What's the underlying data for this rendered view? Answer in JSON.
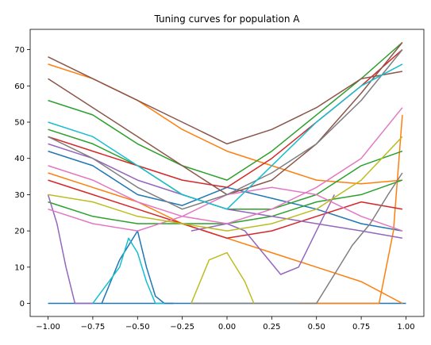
{
  "chart_data": {
    "type": "line",
    "title": "Tuning curves for population A",
    "xlabel": "",
    "ylabel": "",
    "xlim": [
      -1.1,
      1.1
    ],
    "ylim": [
      -3.6,
      75.6
    ],
    "grid": false,
    "legend": "none",
    "x_ticks": [
      -1.0,
      -0.75,
      -0.5,
      -0.25,
      0.0,
      0.25,
      0.5,
      0.75,
      1.0
    ],
    "x_tick_labels": [
      "−1.00",
      "−0.75",
      "−0.50",
      "−0.25",
      "0.00",
      "0.25",
      "0.50",
      "0.75",
      "1.00"
    ],
    "y_ticks": [
      0,
      10,
      20,
      30,
      40,
      50,
      60,
      70
    ],
    "y_tick_labels": [
      "0",
      "10",
      "20",
      "30",
      "40",
      "50",
      "60",
      "70"
    ],
    "series": [
      {
        "color": "#1f77b4",
        "x": [
          -1.0,
          -0.8,
          -0.7,
          -0.6,
          -0.5,
          -0.45,
          -0.4,
          -0.35,
          -0.3,
          0.0,
          0.5,
          1.0
        ],
        "y": [
          0,
          0,
          0,
          0,
          0,
          0,
          0,
          0,
          0,
          0,
          0,
          0
        ]
      },
      {
        "color": "#1f77b4",
        "x": [
          -1.0,
          -0.75,
          -0.5,
          -0.25,
          0.0,
          0.25,
          0.5,
          0.75,
          0.98
        ],
        "y": [
          42,
          38,
          30,
          27,
          32,
          29,
          26,
          22,
          20
        ]
      },
      {
        "color": "#1f77b4",
        "x": [
          -0.7,
          -0.6,
          -0.5,
          -0.45,
          -0.4,
          -0.35,
          -0.3
        ],
        "y": [
          0,
          12,
          20,
          10,
          2,
          0,
          0
        ]
      },
      {
        "color": "#ff7f0e",
        "x": [
          -1.0,
          -0.75,
          -0.5,
          -0.25,
          0.0,
          0.25,
          0.5,
          0.75,
          0.98
        ],
        "y": [
          66,
          62,
          56,
          48,
          42,
          38,
          34,
          33,
          34
        ]
      },
      {
        "color": "#ff7f0e",
        "x": [
          -1.0,
          -0.75,
          -0.5,
          -0.25,
          0.0,
          0.25,
          0.5,
          0.75,
          0.98
        ],
        "y": [
          36,
          32,
          28,
          22,
          18,
          14,
          10,
          6,
          0
        ]
      },
      {
        "color": "#ff7f0e",
        "x": [
          0.4,
          0.5,
          0.6,
          0.75,
          0.85,
          0.93,
          0.98
        ],
        "y": [
          0,
          0,
          0,
          0,
          0,
          20,
          52
        ]
      },
      {
        "color": "#2ca02c",
        "x": [
          -1.0,
          -0.75,
          -0.5,
          -0.25,
          0.0,
          0.25,
          0.5,
          0.75,
          0.98
        ],
        "y": [
          56,
          52,
          44,
          38,
          34,
          42,
          52,
          62,
          72
        ]
      },
      {
        "color": "#2ca02c",
        "x": [
          -1.0,
          -0.75,
          -0.5,
          -0.25,
          0.0,
          0.25,
          0.5,
          0.75,
          0.98
        ],
        "y": [
          48,
          44,
          38,
          30,
          26,
          26,
          30,
          38,
          42
        ]
      },
      {
        "color": "#2ca02c",
        "x": [
          -1.0,
          -0.75,
          -0.5,
          -0.25,
          0.0,
          0.25,
          0.5,
          0.75,
          0.98
        ],
        "y": [
          28,
          24,
          22,
          22,
          22,
          24,
          28,
          30,
          34
        ]
      },
      {
        "color": "#d62728",
        "x": [
          -1.0,
          -0.75,
          -0.5,
          -0.25,
          0.0,
          0.25,
          0.5,
          0.75,
          0.98
        ],
        "y": [
          46,
          42,
          38,
          34,
          32,
          40,
          50,
          60,
          70
        ]
      },
      {
        "color": "#d62728",
        "x": [
          -1.0,
          -0.75,
          -0.5,
          -0.25,
          0.0,
          0.25,
          0.5,
          0.75,
          0.98
        ],
        "y": [
          34,
          30,
          26,
          22,
          18,
          20,
          24,
          28,
          26
        ]
      },
      {
        "color": "#9467bd",
        "x": [
          -1.0,
          -0.75,
          -0.5,
          -0.25,
          0.0,
          0.25,
          0.5,
          0.75,
          0.98
        ],
        "y": [
          44,
          40,
          34,
          30,
          26,
          24,
          22,
          20,
          18
        ]
      },
      {
        "color": "#9467bd",
        "x": [
          -1.0,
          -0.95,
          -0.9,
          -0.85,
          -0.8,
          -0.75
        ],
        "y": [
          30,
          22,
          10,
          0,
          0,
          0
        ]
      },
      {
        "color": "#9467bd",
        "x": [
          -0.2,
          0.0,
          0.1,
          0.2,
          0.3,
          0.4,
          0.5,
          0.6
        ],
        "y": [
          20,
          22,
          20,
          14,
          8,
          10,
          20,
          30
        ]
      },
      {
        "color": "#8c564b",
        "x": [
          -1.0,
          -0.75,
          -0.5,
          -0.25,
          0.0,
          0.25,
          0.5,
          0.75,
          0.98
        ],
        "y": [
          68,
          62,
          56,
          50,
          44,
          48,
          54,
          62,
          64
        ]
      },
      {
        "color": "#8c564b",
        "x": [
          -1.0,
          -0.75,
          -0.5,
          -0.25,
          0.0,
          0.25,
          0.5,
          0.75,
          0.98
        ],
        "y": [
          62,
          54,
          46,
          38,
          30,
          34,
          44,
          58,
          72
        ]
      },
      {
        "color": "#e377c2",
        "x": [
          -1.0,
          -0.75,
          -0.5,
          -0.25,
          0.0,
          0.25,
          0.5,
          0.75,
          0.98
        ],
        "y": [
          38,
          34,
          28,
          24,
          22,
          26,
          32,
          40,
          54
        ]
      },
      {
        "color": "#e377c2",
        "x": [
          -1.0,
          -0.75,
          -0.5,
          -0.25,
          0.0,
          0.25,
          0.5,
          0.75,
          0.98
        ],
        "y": [
          26,
          22,
          20,
          24,
          30,
          32,
          30,
          24,
          20
        ]
      },
      {
        "color": "#7f7f7f",
        "x": [
          -1.0,
          -0.75,
          -0.5,
          -0.25,
          0.0,
          0.25,
          0.5,
          0.75,
          0.98
        ],
        "y": [
          46,
          40,
          32,
          26,
          30,
          36,
          44,
          56,
          70
        ]
      },
      {
        "color": "#7f7f7f",
        "x": [
          -0.2,
          0.0,
          0.25,
          0.5,
          0.6,
          0.7,
          0.8,
          0.9,
          0.98
        ],
        "y": [
          0,
          0,
          0,
          0,
          8,
          16,
          22,
          30,
          36
        ]
      },
      {
        "color": "#bcbd22",
        "x": [
          -1.0,
          -0.75,
          -0.5,
          -0.25,
          0.0,
          0.25,
          0.5,
          0.75,
          0.98
        ],
        "y": [
          30,
          28,
          24,
          22,
          20,
          22,
          26,
          34,
          46
        ]
      },
      {
        "color": "#bcbd22",
        "x": [
          -0.2,
          -0.1,
          0.0,
          0.1,
          0.15
        ],
        "y": [
          0,
          12,
          14,
          6,
          0
        ]
      },
      {
        "color": "#17becf",
        "x": [
          -1.0,
          -0.75,
          -0.5,
          -0.25,
          0.0,
          0.25,
          0.5,
          0.75,
          0.98
        ],
        "y": [
          50,
          46,
          38,
          30,
          26,
          38,
          50,
          60,
          66
        ]
      },
      {
        "color": "#17becf",
        "x": [
          -0.75,
          -0.6,
          -0.55,
          -0.5,
          -0.45,
          -0.4,
          -0.35
        ],
        "y": [
          0,
          10,
          18,
          14,
          6,
          0,
          0
        ]
      }
    ]
  }
}
